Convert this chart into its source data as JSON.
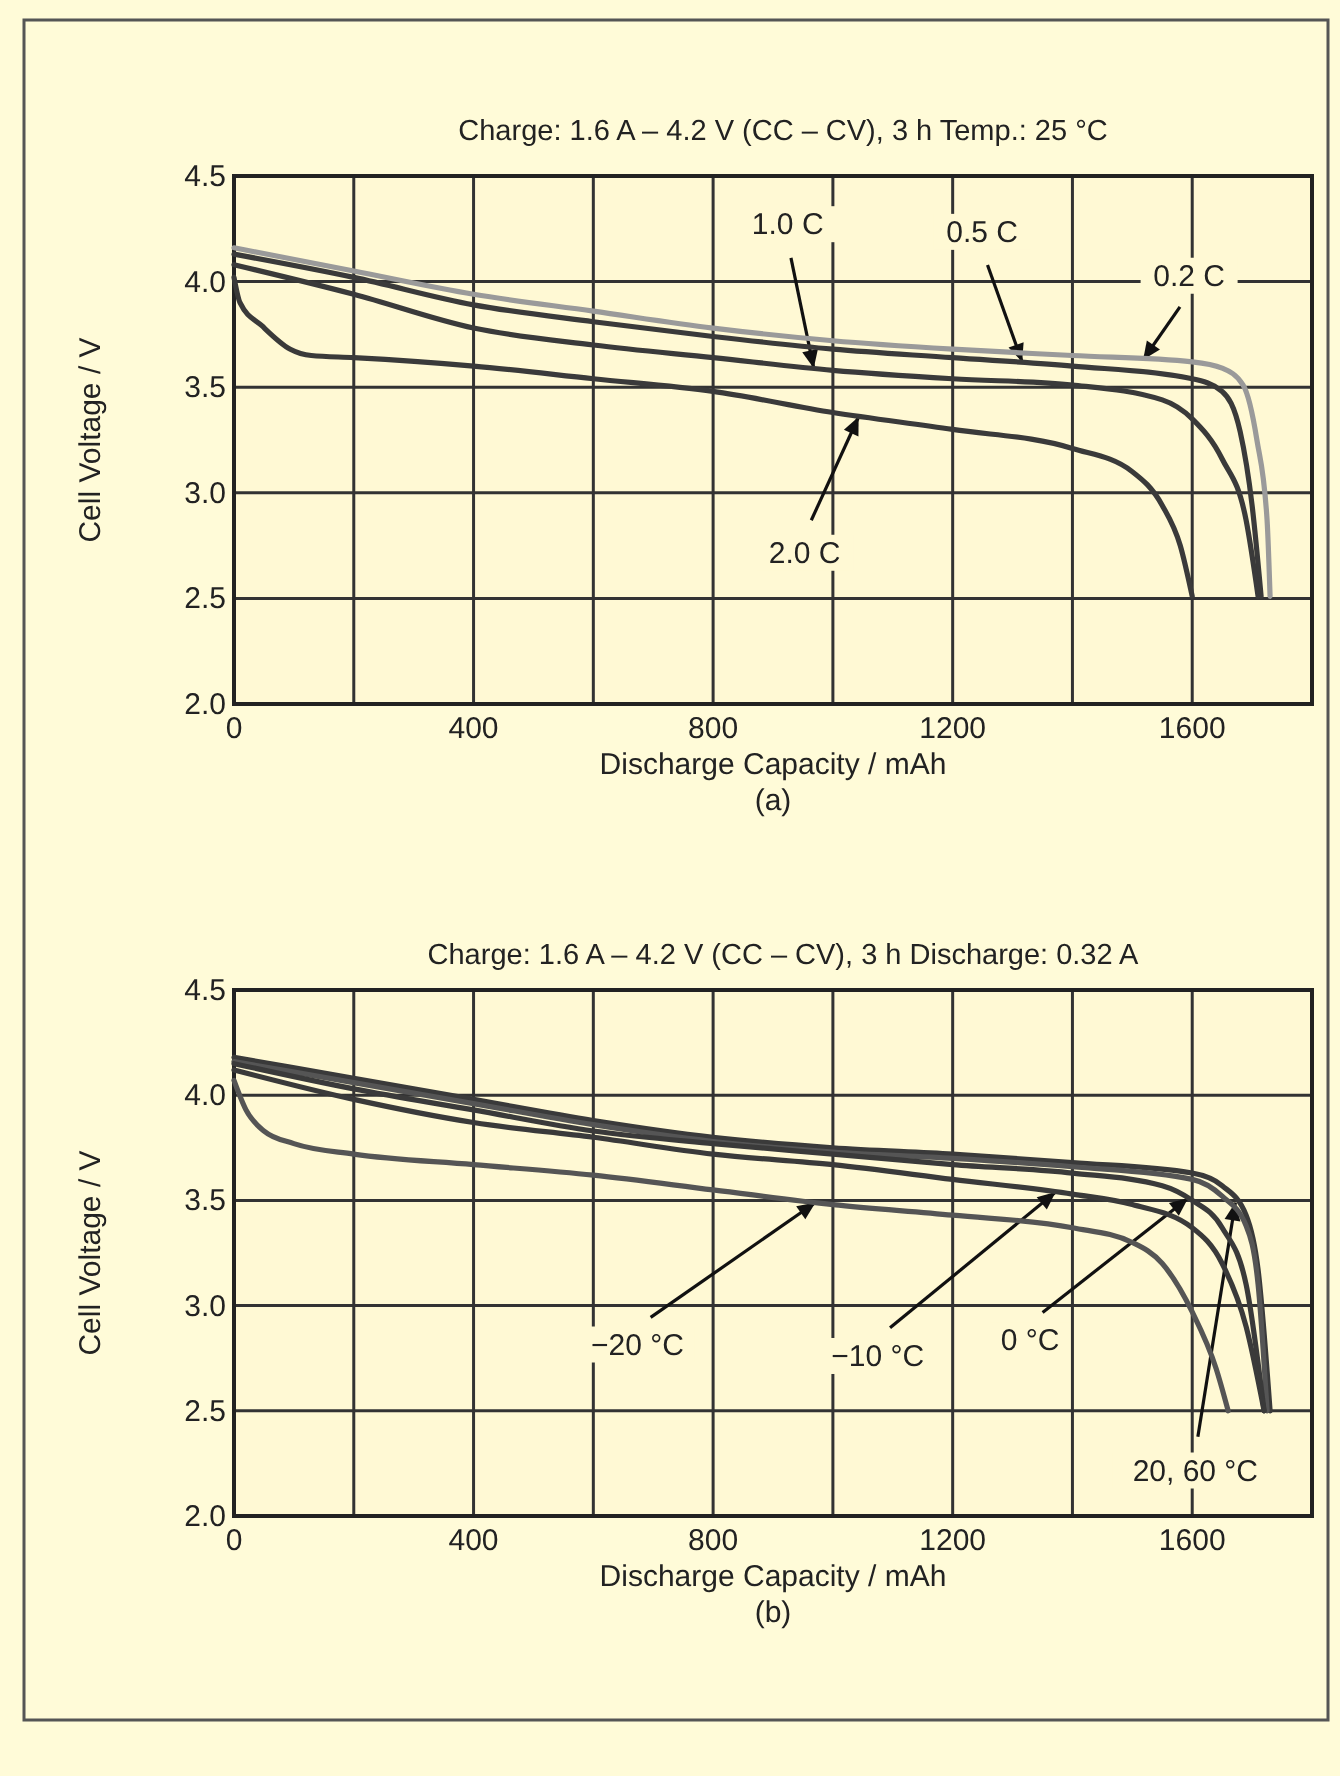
{
  "chart_data": [
    {
      "type": "line",
      "title": "Charge: 1.6 A – 4.2 V (CC – CV), 3 h Temp.: 25 °C",
      "xlabel": "Discharge Capacity / mAh",
      "ylabel": "Cell Voltage / V",
      "xlim": [
        0,
        1800
      ],
      "ylim": [
        2,
        4.5
      ],
      "xticks": [
        0,
        {
          "value": 200,
          "label": null
        },
        400,
        {
          "value": 600,
          "label": null
        },
        800,
        {
          "value": 1000,
          "label": null
        },
        1200,
        {
          "value": 1400,
          "label": null
        },
        1600,
        {
          "value": 1800,
          "label": null
        }
      ],
      "yticks": [
        {
          "value": 2,
          "label": "2.0"
        },
        {
          "value": 2.5,
          "label": "2.5"
        },
        {
          "value": 3,
          "label": "3.0"
        },
        {
          "value": 3.5,
          "label": "3.5"
        },
        {
          "value": 4,
          "label": "4.0"
        },
        {
          "value": 4.5,
          "label": "4.5"
        }
      ],
      "grid": true,
      "marker": "none",
      "line_style": "solid",
      "series": [
        {
          "color": "#9a9a9a",
          "x": [
            0,
            200,
            400,
            600,
            800,
            1000,
            1200,
            1400,
            1600,
            1650,
            1685,
            1708,
            1725,
            1730
          ],
          "values": [
            4.16,
            4.05,
            3.94,
            3.86,
            3.78,
            3.72,
            3.68,
            3.65,
            3.62,
            3.59,
            3.51,
            3.25,
            2.87,
            2.51
          ]
        },
        {
          "color": "#3a3a3a",
          "x": [
            0,
            200,
            400,
            600,
            800,
            1000,
            1200,
            1400,
            1600,
            1650,
            1680,
            1700,
            1715
          ],
          "values": [
            4.13,
            4.02,
            3.89,
            3.81,
            3.74,
            3.68,
            3.64,
            3.6,
            3.54,
            3.48,
            3.29,
            2.94,
            2.51
          ]
        },
        {
          "color": "#3a3a3a",
          "x": [
            0,
            200,
            400,
            600,
            800,
            1000,
            1200,
            1400,
            1550,
            1600,
            1650,
            1690,
            1710
          ],
          "values": [
            4.08,
            3.94,
            3.78,
            3.7,
            3.64,
            3.58,
            3.54,
            3.51,
            3.44,
            3.35,
            3.16,
            2.87,
            2.51
          ]
        },
        {
          "color": "#3a3a3a",
          "x": [
            0,
            10,
            47,
            94,
            129,
            200,
            400,
            600,
            800,
            1000,
            1200,
            1400,
            1500,
            1550,
            1580,
            1600
          ],
          "values": [
            4.02,
            3.9,
            3.79,
            3.68,
            3.65,
            3.64,
            3.6,
            3.54,
            3.48,
            3.38,
            3.3,
            3.21,
            3.1,
            2.94,
            2.75,
            2.51
          ]
        }
      ],
      "annotations": [
        {
          "text": "1.0 C",
          "x": 968,
          "y": 3.59
        },
        {
          "text": "0.5 C",
          "x": 1316,
          "y": 3.62
        },
        {
          "text": "0.2 C",
          "x": 1518,
          "y": 3.63
        },
        {
          "text": "2.0 C",
          "x": 1043,
          "y": 3.36
        },
        "(a)"
      ]
    },
    {
      "type": "line",
      "title": "Charge: 1.6 A – 4.2 V (CC – CV), 3 h Discharge: 0.32 A",
      "xlabel": "Discharge Capacity / mAh",
      "ylabel": "Cell Voltage / V",
      "xlim": [
        0,
        1800
      ],
      "ylim": [
        2,
        4.5
      ],
      "xticks": [
        0,
        {
          "value": 200,
          "label": null
        },
        400,
        {
          "value": 600,
          "label": null
        },
        800,
        {
          "value": 1000,
          "label": null
        },
        1200,
        {
          "value": 1400,
          "label": null
        },
        1600,
        {
          "value": 1800,
          "label": null
        }
      ],
      "yticks": [
        {
          "value": 2,
          "label": "2.0"
        },
        {
          "value": 2.5,
          "label": "2.5"
        },
        {
          "value": 3,
          "label": "3.0"
        },
        {
          "value": 3.5,
          "label": "3.5"
        },
        {
          "value": 4,
          "label": "4.0"
        },
        {
          "value": 4.5,
          "label": "4.5"
        }
      ],
      "grid": true,
      "marker": "none",
      "line_style": "solid",
      "series": [
        {
          "color": "#3a3a3a",
          "x": [
            0,
            200,
            400,
            600,
            800,
            1000,
            1200,
            1400,
            1600,
            1650,
            1690,
            1710,
            1730
          ],
          "values": [
            4.18,
            4.08,
            3.98,
            3.88,
            3.8,
            3.75,
            3.72,
            3.68,
            3.63,
            3.57,
            3.43,
            3.17,
            2.5
          ]
        },
        {
          "color": "#555555",
          "x": [
            0,
            200,
            400,
            600,
            800,
            1000,
            1200,
            1400,
            1600,
            1650,
            1690,
            1710,
            1725
          ],
          "values": [
            4.16,
            4.06,
            3.96,
            3.86,
            3.78,
            3.73,
            3.7,
            3.66,
            3.6,
            3.52,
            3.38,
            3.1,
            2.5
          ]
        },
        {
          "color": "#3a3a3a",
          "x": [
            0,
            200,
            400,
            600,
            800,
            1000,
            1200,
            1400,
            1550,
            1600,
            1650,
            1690,
            1720
          ],
          "values": [
            4.15,
            4.03,
            3.93,
            3.83,
            3.77,
            3.72,
            3.67,
            3.63,
            3.57,
            3.5,
            3.37,
            3.1,
            2.5
          ]
        },
        {
          "color": "#3a3a3a",
          "x": [
            0,
            200,
            400,
            600,
            800,
            1000,
            1200,
            1400,
            1500,
            1600,
            1650,
            1690,
            1720
          ],
          "values": [
            4.12,
            3.98,
            3.87,
            3.8,
            3.72,
            3.67,
            3.6,
            3.53,
            3.48,
            3.37,
            3.2,
            2.9,
            2.5
          ]
        },
        {
          "color": "#555555",
          "x": [
            0,
            20,
            50,
            100,
            200,
            400,
            600,
            800,
            1000,
            1200,
            1400,
            1500,
            1550,
            1600,
            1640,
            1660
          ],
          "values": [
            4.07,
            3.93,
            3.83,
            3.77,
            3.72,
            3.67,
            3.62,
            3.55,
            3.48,
            3.43,
            3.37,
            3.3,
            3.2,
            2.97,
            2.7,
            2.5
          ]
        }
      ],
      "annotations": [
        {
          "text": "−20 °C",
          "x": 971,
          "y": 3.49
        },
        {
          "text": "−10 °C",
          "x": 1372,
          "y": 3.54
        },
        {
          "text": "0 °C",
          "x": 1593,
          "y": 3.51
        },
        {
          "text": "20, 60 °C",
          "x": 1672,
          "y": 3.49
        },
        "(b)"
      ]
    }
  ]
}
